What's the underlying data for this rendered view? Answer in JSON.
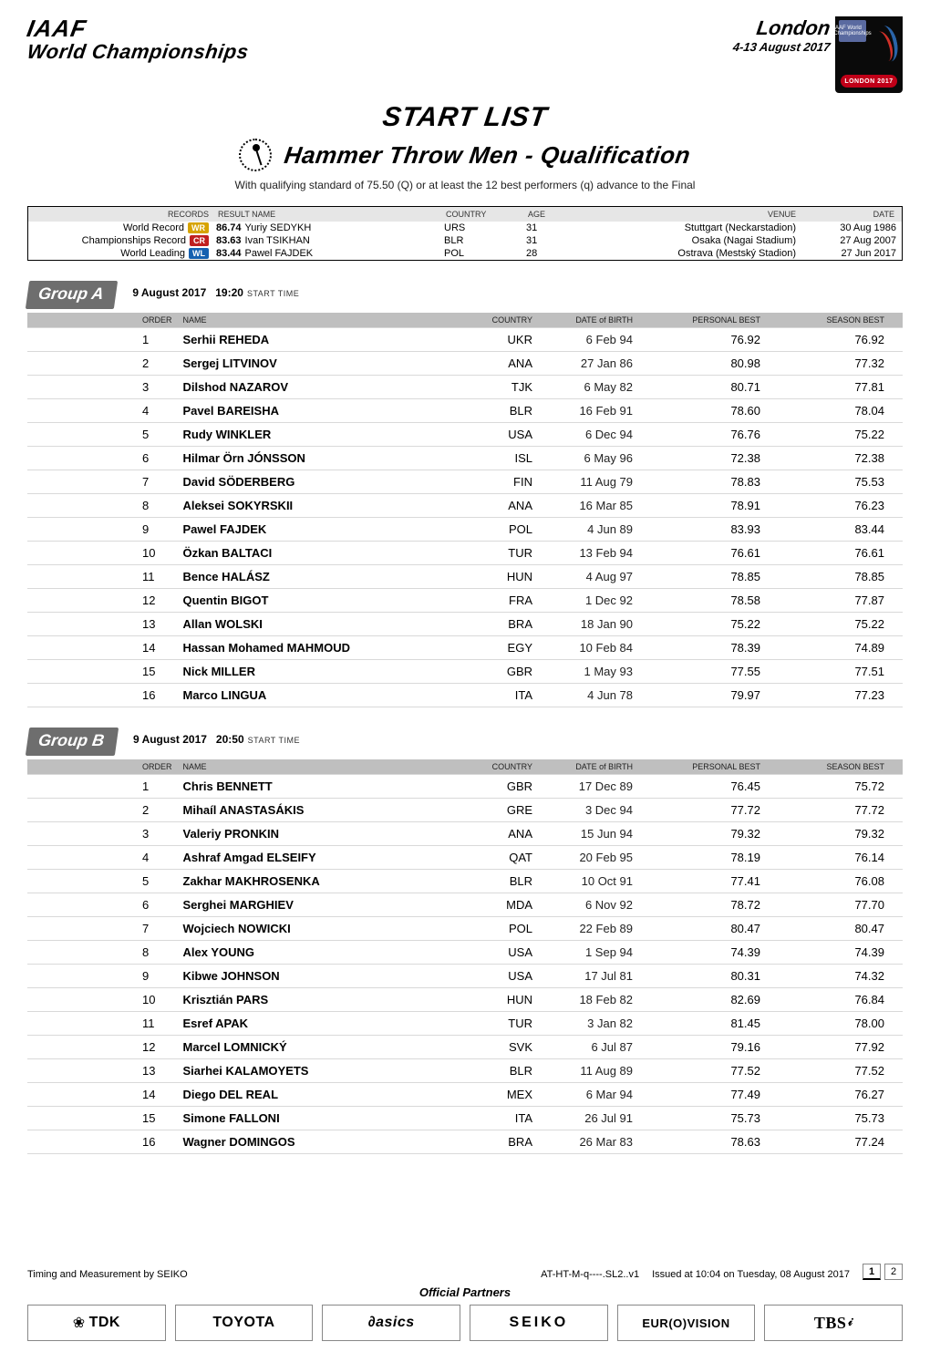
{
  "header": {
    "iaaf": "IAAF",
    "wc": "World Championships",
    "city": "London",
    "dates": "4-13 August 2017",
    "emblem_top": "IAAF World Championships",
    "emblem_pill": "LONDON 2017"
  },
  "title": {
    "start_list": "START LIST",
    "event": "Hammer Throw Men - Qualification",
    "note": "With qualifying standard of 75.50 (Q) or at least the 12 best performers (q) advance to the Final"
  },
  "records": {
    "head": {
      "records": "RECORDS",
      "result_name": "RESULT  NAME",
      "country": "COUNTRY",
      "age": "AGE",
      "venue": "VENUE",
      "date": "DATE"
    },
    "rows": [
      {
        "label": "World Record",
        "pill": "WR",
        "pill_cls": "pill-wr",
        "result": "86.74",
        "name": "Yuriy SEDYKH",
        "country": "URS",
        "age": "31",
        "venue": "Stuttgart (Neckarstadion)",
        "date": "30 Aug 1986"
      },
      {
        "label": "Championships Record",
        "pill": "CR",
        "pill_cls": "pill-cr",
        "result": "83.63",
        "name": "Ivan TSIKHAN",
        "country": "BLR",
        "age": "31",
        "venue": "Osaka (Nagai Stadium)",
        "date": "27 Aug 2007"
      },
      {
        "label": "World Leading",
        "pill": "WL",
        "pill_cls": "pill-wl",
        "result": "83.44",
        "name": "Pawel FAJDEK",
        "country": "POL",
        "age": "28",
        "venue": "Ostrava (Mestský Stadion)",
        "date": "27 Jun 2017"
      }
    ]
  },
  "groups": [
    {
      "chip": "Group A",
      "date": "9 August  2017",
      "time": "19:20",
      "time_lbl": "START TIME",
      "cols": {
        "order": "ORDER",
        "name": "NAME",
        "country": "COUNTRY",
        "dob": "DATE of BIRTH",
        "pb": "PERSONAL BEST",
        "sb": "SEASON BEST"
      },
      "rows": [
        {
          "o": "1",
          "n": "Serhii REHEDA",
          "c": "UKR",
          "d": "6 Feb 94",
          "pb": "76.92",
          "sb": "76.92"
        },
        {
          "o": "2",
          "n": "Sergej LITVINOV",
          "c": "ANA",
          "d": "27 Jan 86",
          "pb": "80.98",
          "sb": "77.32"
        },
        {
          "o": "3",
          "n": "Dilshod NAZAROV",
          "c": "TJK",
          "d": "6 May 82",
          "pb": "80.71",
          "sb": "77.81"
        },
        {
          "o": "4",
          "n": "Pavel BAREISHA",
          "c": "BLR",
          "d": "16 Feb 91",
          "pb": "78.60",
          "sb": "78.04"
        },
        {
          "o": "5",
          "n": "Rudy WINKLER",
          "c": "USA",
          "d": "6 Dec 94",
          "pb": "76.76",
          "sb": "75.22"
        },
        {
          "o": "6",
          "n": "Hilmar Örn JÓNSSON",
          "c": "ISL",
          "d": "6 May 96",
          "pb": "72.38",
          "sb": "72.38"
        },
        {
          "o": "7",
          "n": "David SÖDERBERG",
          "c": "FIN",
          "d": "11 Aug 79",
          "pb": "78.83",
          "sb": "75.53"
        },
        {
          "o": "8",
          "n": "Aleksei SOKYRSKII",
          "c": "ANA",
          "d": "16 Mar 85",
          "pb": "78.91",
          "sb": "76.23"
        },
        {
          "o": "9",
          "n": "Pawel FAJDEK",
          "c": "POL",
          "d": "4 Jun 89",
          "pb": "83.93",
          "sb": "83.44"
        },
        {
          "o": "10",
          "n": "Özkan BALTACI",
          "c": "TUR",
          "d": "13 Feb 94",
          "pb": "76.61",
          "sb": "76.61"
        },
        {
          "o": "11",
          "n": "Bence HALÁSZ",
          "c": "HUN",
          "d": "4 Aug 97",
          "pb": "78.85",
          "sb": "78.85"
        },
        {
          "o": "12",
          "n": "Quentin BIGOT",
          "c": "FRA",
          "d": "1 Dec 92",
          "pb": "78.58",
          "sb": "77.87"
        },
        {
          "o": "13",
          "n": "Allan WOLSKI",
          "c": "BRA",
          "d": "18 Jan 90",
          "pb": "75.22",
          "sb": "75.22"
        },
        {
          "o": "14",
          "n": "Hassan Mohamed MAHMOUD",
          "c": "EGY",
          "d": "10 Feb 84",
          "pb": "78.39",
          "sb": "74.89"
        },
        {
          "o": "15",
          "n": "Nick MILLER",
          "c": "GBR",
          "d": "1 May 93",
          "pb": "77.55",
          "sb": "77.51"
        },
        {
          "o": "16",
          "n": "Marco LINGUA",
          "c": "ITA",
          "d": "4 Jun 78",
          "pb": "79.97",
          "sb": "77.23"
        }
      ]
    },
    {
      "chip": "Group B",
      "date": "9 August  2017",
      "time": "20:50",
      "time_lbl": "START TIME",
      "cols": {
        "order": "ORDER",
        "name": "NAME",
        "country": "COUNTRY",
        "dob": "DATE of BIRTH",
        "pb": "PERSONAL BEST",
        "sb": "SEASON BEST"
      },
      "rows": [
        {
          "o": "1",
          "n": "Chris BENNETT",
          "c": "GBR",
          "d": "17 Dec 89",
          "pb": "76.45",
          "sb": "75.72"
        },
        {
          "o": "2",
          "n": "Mihaíl ANASTASÁKIS",
          "c": "GRE",
          "d": "3 Dec 94",
          "pb": "77.72",
          "sb": "77.72"
        },
        {
          "o": "3",
          "n": "Valeriy PRONKIN",
          "c": "ANA",
          "d": "15 Jun 94",
          "pb": "79.32",
          "sb": "79.32"
        },
        {
          "o": "4",
          "n": "Ashraf Amgad ELSEIFY",
          "c": "QAT",
          "d": "20 Feb 95",
          "pb": "78.19",
          "sb": "76.14"
        },
        {
          "o": "5",
          "n": "Zakhar MAKHROSENKA",
          "c": "BLR",
          "d": "10 Oct 91",
          "pb": "77.41",
          "sb": "76.08"
        },
        {
          "o": "6",
          "n": "Serghei MARGHIEV",
          "c": "MDA",
          "d": "6 Nov 92",
          "pb": "78.72",
          "sb": "77.70"
        },
        {
          "o": "7",
          "n": "Wojciech NOWICKI",
          "c": "POL",
          "d": "22 Feb 89",
          "pb": "80.47",
          "sb": "80.47"
        },
        {
          "o": "8",
          "n": "Alex YOUNG",
          "c": "USA",
          "d": "1 Sep 94",
          "pb": "74.39",
          "sb": "74.39"
        },
        {
          "o": "9",
          "n": "Kibwe JOHNSON",
          "c": "USA",
          "d": "17 Jul 81",
          "pb": "80.31",
          "sb": "74.32"
        },
        {
          "o": "10",
          "n": "Krisztián PARS",
          "c": "HUN",
          "d": "18 Feb 82",
          "pb": "82.69",
          "sb": "76.84"
        },
        {
          "o": "11",
          "n": "Esref APAK",
          "c": "TUR",
          "d": "3 Jan 82",
          "pb": "81.45",
          "sb": "78.00"
        },
        {
          "o": "12",
          "n": "Marcel LOMNICKÝ",
          "c": "SVK",
          "d": "6 Jul 87",
          "pb": "79.16",
          "sb": "77.92"
        },
        {
          "o": "13",
          "n": "Siarhei KALAMOYETS",
          "c": "BLR",
          "d": "11 Aug 89",
          "pb": "77.52",
          "sb": "77.52"
        },
        {
          "o": "14",
          "n": "Diego DEL REAL",
          "c": "MEX",
          "d": "6 Mar 94",
          "pb": "77.49",
          "sb": "76.27"
        },
        {
          "o": "15",
          "n": "Simone FALLONI",
          "c": "ITA",
          "d": "26 Jul 91",
          "pb": "75.73",
          "sb": "75.73"
        },
        {
          "o": "16",
          "n": "Wagner DOMINGOS",
          "c": "BRA",
          "d": "26 Mar 83",
          "pb": "78.63",
          "sb": "77.24"
        }
      ]
    }
  ],
  "footer": {
    "timing": "Timing and Measurement by SEIKO",
    "code": "AT-HT-M-q----.SL2..v1",
    "issued": "Issued at 10:04 on Tuesday, 08 August  2017",
    "page_current": "1",
    "page_total": "2",
    "official": "Official Partners",
    "sponsors": [
      "TDK",
      "TOYOTA",
      "asics",
      "SEIKO",
      "EUR(O)VISION",
      "TBS"
    ]
  }
}
